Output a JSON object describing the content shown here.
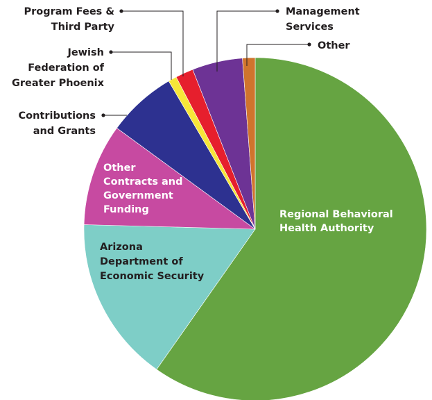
{
  "chart_data": {
    "type": "pie",
    "title": "",
    "series": [
      {
        "label": "Regional Behavioral Health Authority",
        "lines": [
          "Regional Behavioral",
          "Health Authority"
        ],
        "value": 60.3,
        "color": "#66a442",
        "text_color": "#ffffff"
      },
      {
        "label": "Arizona Department of Economic Security",
        "lines": [
          "Arizona",
          "Department of",
          "Economic Security"
        ],
        "value": 15.8,
        "color": "#7ecec7",
        "text_color": "#231f20"
      },
      {
        "label": "Other Contracts and Government Funding",
        "lines": [
          "Other",
          "Contracts and",
          "Government",
          "Funding"
        ],
        "value": 9.7,
        "color": "#c74aa1",
        "text_color": "#ffffff"
      },
      {
        "label": "Contributions and Grants",
        "lines": [
          "Contributions",
          "and Grants"
        ],
        "value": 6.6,
        "color": "#2d3190",
        "text_color": "#231f20"
      },
      {
        "label": "Jewish Federation of Greater Phoenix",
        "lines": [
          "Jewish",
          "Federation of",
          "Greater Phoenix"
        ],
        "value": 0.8,
        "color": "#f7e639",
        "text_color": "#231f20"
      },
      {
        "label": "Program Fees & Third Party",
        "lines": [
          "Program Fees &",
          "Third Party"
        ],
        "value": 1.7,
        "color": "#e61f2d",
        "text_color": "#231f20"
      },
      {
        "label": "Management Services",
        "lines": [
          "Management",
          "Services"
        ],
        "value": 4.8,
        "color": "#6d3395",
        "text_color": "#231f20"
      },
      {
        "label": "Other",
        "lines": [
          "Other"
        ],
        "value": 1.2,
        "color": "#d0742d",
        "text_color": "#231f20"
      }
    ]
  }
}
